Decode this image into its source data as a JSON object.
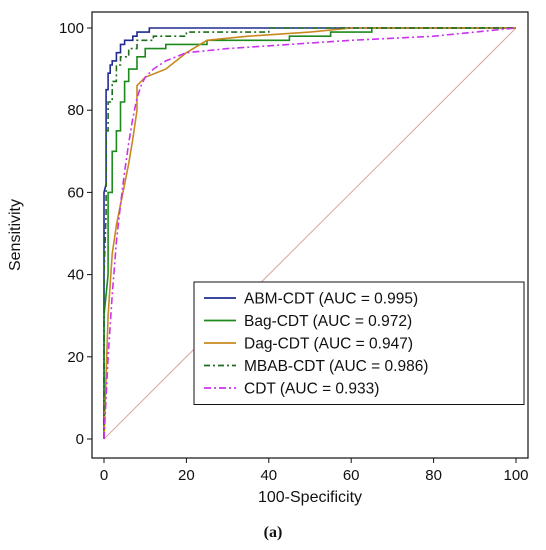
{
  "caption": "(a)",
  "chart_data": {
    "type": "line",
    "xlabel": "100-Specificity",
    "ylabel": "Sensitivity",
    "xlim": [
      0,
      100
    ],
    "ylim": [
      0,
      100
    ],
    "xticks": [
      0,
      20,
      40,
      60,
      80,
      100
    ],
    "yticks": [
      0,
      20,
      40,
      60,
      80,
      100
    ],
    "legend_position": "bottom-right",
    "reference_line": {
      "from": [
        0,
        0
      ],
      "to": [
        100,
        100
      ],
      "color": "#d9a49b"
    },
    "series": [
      {
        "name": "ABM-CDT (AUC = 0.995)",
        "color": "#1f2b8f",
        "dash": "",
        "points": [
          [
            0,
            0
          ],
          [
            0,
            60
          ],
          [
            0.5,
            62
          ],
          [
            0.5,
            85
          ],
          [
            1,
            85
          ],
          [
            1,
            89
          ],
          [
            1.5,
            89
          ],
          [
            1.5,
            91
          ],
          [
            2,
            91
          ],
          [
            2,
            92
          ],
          [
            3,
            92
          ],
          [
            3,
            94
          ],
          [
            4,
            94
          ],
          [
            4,
            96
          ],
          [
            5,
            96
          ],
          [
            5,
            97
          ],
          [
            7,
            97
          ],
          [
            7,
            98
          ],
          [
            8,
            98
          ],
          [
            8,
            99
          ],
          [
            11,
            99
          ],
          [
            11,
            100
          ],
          [
            100,
            100
          ]
        ]
      },
      {
        "name": "Bag-CDT (AUC = 0.972)",
        "color": "#1e8a1e",
        "dash": "",
        "points": [
          [
            0,
            0
          ],
          [
            0,
            30
          ],
          [
            1,
            40
          ],
          [
            1,
            60
          ],
          [
            2,
            60
          ],
          [
            2,
            70
          ],
          [
            3,
            70
          ],
          [
            3,
            75
          ],
          [
            4,
            75
          ],
          [
            4,
            82
          ],
          [
            5,
            82
          ],
          [
            5,
            87
          ],
          [
            6,
            87
          ],
          [
            6,
            90
          ],
          [
            8,
            90
          ],
          [
            8,
            93
          ],
          [
            10,
            93
          ],
          [
            10,
            95
          ],
          [
            15,
            95
          ],
          [
            15,
            96
          ],
          [
            25,
            96
          ],
          [
            25,
            97
          ],
          [
            45,
            97
          ],
          [
            45,
            98
          ],
          [
            55,
            98
          ],
          [
            55,
            99
          ],
          [
            65,
            99
          ],
          [
            65,
            100
          ],
          [
            100,
            100
          ]
        ]
      },
      {
        "name": "Dag-CDT (AUC = 0.947)",
        "color": "#c8891e",
        "dash": "",
        "points": [
          [
            0,
            0
          ],
          [
            1,
            30
          ],
          [
            2,
            45
          ],
          [
            3,
            52
          ],
          [
            4,
            57
          ],
          [
            5,
            62
          ],
          [
            6,
            67
          ],
          [
            7,
            73
          ],
          [
            8,
            80
          ],
          [
            8,
            86
          ],
          [
            9,
            87
          ],
          [
            10,
            88
          ],
          [
            15,
            90
          ],
          [
            20,
            94
          ],
          [
            25,
            97
          ],
          [
            35,
            98
          ],
          [
            50,
            99
          ],
          [
            60,
            100
          ],
          [
            100,
            100
          ]
        ]
      },
      {
        "name": "MBAB-CDT (AUC = 0.986)",
        "color": "#1e6e1e",
        "dash": "6,3,2,3",
        "points": [
          [
            0,
            0
          ],
          [
            0,
            40
          ],
          [
            0.5,
            55
          ],
          [
            0.5,
            75
          ],
          [
            1,
            75
          ],
          [
            1,
            82
          ],
          [
            2,
            82
          ],
          [
            2,
            87
          ],
          [
            3,
            87
          ],
          [
            3,
            91
          ],
          [
            4,
            91
          ],
          [
            4,
            93
          ],
          [
            6,
            93
          ],
          [
            6,
            95
          ],
          [
            8,
            95
          ],
          [
            8,
            97
          ],
          [
            12,
            97
          ],
          [
            12,
            98
          ],
          [
            20,
            98
          ],
          [
            20,
            99
          ],
          [
            40,
            99
          ],
          [
            40,
            100
          ],
          [
            100,
            100
          ]
        ]
      },
      {
        "name": "CDT (AUC = 0.933)",
        "color": "#cc33ee",
        "dash": "7,3,2,3",
        "points": [
          [
            0,
            0
          ],
          [
            1,
            20
          ],
          [
            2,
            35
          ],
          [
            3,
            48
          ],
          [
            4,
            57
          ],
          [
            5,
            65
          ],
          [
            6,
            72
          ],
          [
            7,
            78
          ],
          [
            8,
            83
          ],
          [
            9,
            86
          ],
          [
            10,
            88
          ],
          [
            12,
            90
          ],
          [
            15,
            92
          ],
          [
            20,
            94
          ],
          [
            30,
            95
          ],
          [
            45,
            96
          ],
          [
            60,
            97
          ],
          [
            80,
            98
          ],
          [
            100,
            100
          ]
        ]
      }
    ]
  }
}
